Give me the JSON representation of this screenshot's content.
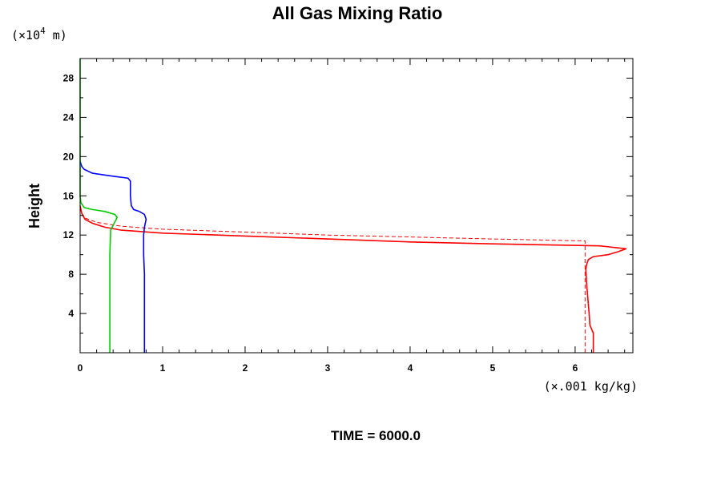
{
  "chart_data": {
    "type": "line",
    "title": "All Gas Mixing Ratio",
    "ylabel": "Height",
    "y_unit_prefix": "(×10",
    "y_unit_exp": "4",
    "y_unit_suffix": " m)",
    "x_unit": "(×.001 kg/kg)",
    "footer": "TIME = 6000.0",
    "xlim": [
      0,
      6.7
    ],
    "ylim": [
      0,
      30
    ],
    "x_ticks": [
      0,
      1,
      2,
      3,
      4,
      5,
      6
    ],
    "x_tick_labels": [
      "0",
      "1",
      "2",
      "3",
      "4",
      "5",
      "6"
    ],
    "y_ticks": [
      4,
      8,
      12,
      16,
      20,
      24,
      28
    ],
    "y_tick_labels": [
      "4",
      "8",
      "12",
      "16",
      "20",
      "24",
      "28"
    ],
    "grid": false,
    "legend": "none",
    "series": [
      {
        "color": "#ff0000",
        "style": "solid",
        "x": [
          6.22,
          6.22,
          6.18,
          6.17,
          6.14,
          6.13,
          6.14,
          6.16,
          6.22,
          6.4,
          6.52,
          6.62,
          6.3,
          5.0,
          4.0,
          3.0,
          2.0,
          1.0,
          0.5,
          0.3,
          0.15,
          0.06,
          0.02,
          0.0
        ],
        "y": [
          0.0,
          2.0,
          2.8,
          4.0,
          7.0,
          8.5,
          9.0,
          9.5,
          9.8,
          10.0,
          10.3,
          10.6,
          10.9,
          11.1,
          11.3,
          11.6,
          11.9,
          12.2,
          12.5,
          12.8,
          13.2,
          13.6,
          14.2,
          15.0
        ]
      },
      {
        "color": "#ff0000",
        "style": "dashed",
        "x": [
          6.12,
          6.12,
          6.12,
          5.0,
          4.0,
          3.0,
          2.0,
          1.0,
          0.5,
          0.2,
          0.07,
          0.02,
          0.0
        ],
        "y": [
          0.0,
          9.0,
          11.4,
          11.6,
          11.8,
          12.0,
          12.3,
          12.6,
          12.9,
          13.3,
          13.7,
          14.2,
          15.0
        ]
      },
      {
        "color": "#0000ff",
        "style": "solid",
        "x": [
          0.78,
          0.78,
          0.77,
          0.77,
          0.78,
          0.8,
          0.78,
          0.72,
          0.65,
          0.62,
          0.61,
          0.61,
          0.58,
          0.4,
          0.15,
          0.05,
          0.02,
          0.0
        ],
        "y": [
          0.0,
          8.0,
          10.0,
          12.0,
          12.8,
          13.6,
          14.1,
          14.4,
          14.6,
          15.0,
          16.0,
          17.5,
          17.8,
          18.0,
          18.3,
          18.7,
          19.0,
          19.5
        ]
      },
      {
        "color": "#00cc00",
        "style": "solid",
        "x": [
          0.36,
          0.36,
          0.36,
          0.37,
          0.4,
          0.45,
          0.42,
          0.3,
          0.15,
          0.05,
          0.01,
          0.0,
          0.0,
          0.0
        ],
        "y": [
          0.0,
          6.0,
          10.0,
          12.5,
          13.0,
          13.8,
          14.1,
          14.4,
          14.6,
          14.8,
          15.3,
          16.0,
          20.0,
          30.0
        ]
      }
    ]
  }
}
